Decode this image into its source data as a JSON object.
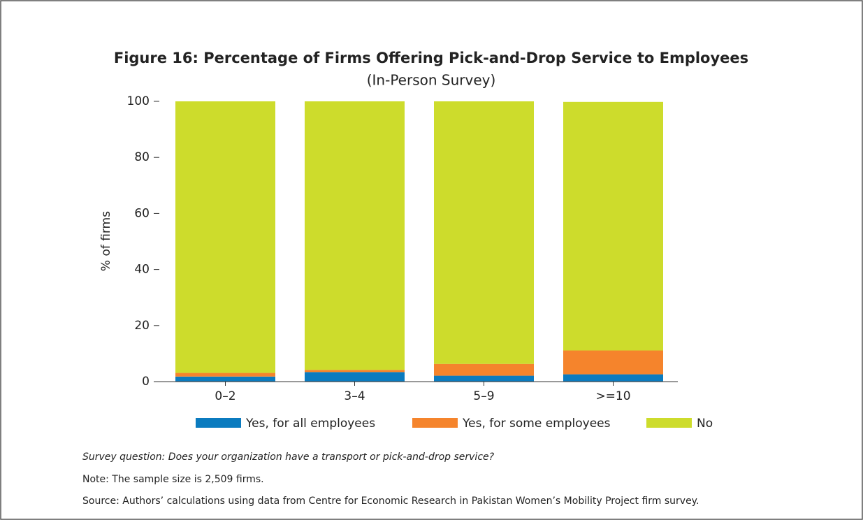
{
  "chart_data": {
    "type": "stacked_bar",
    "title": "Figure 16: Percentage of Firms Offering Pick-and-Drop Service to Employees",
    "subtitle": "(In-Person Survey)",
    "y_label": "% of firms",
    "categories": [
      "0–2",
      "3–4",
      "5–9",
      ">=10"
    ],
    "series": [
      {
        "name": "Yes, for all employees",
        "color": "#0b7bbf",
        "values": [
          1.8,
          3.4,
          2.1,
          2.6
        ]
      },
      {
        "name": "Yes, for some employees",
        "color": "#f5842c",
        "values": [
          1.3,
          0.8,
          4.2,
          8.5
        ]
      },
      {
        "name": "No",
        "color": "#cddc2c",
        "values": [
          96.9,
          95.8,
          93.7,
          88.7
        ]
      }
    ],
    "ylim": [
      0,
      100
    ],
    "yticks": [
      0,
      20,
      40,
      60,
      80,
      100
    ],
    "legend": "bottom"
  },
  "notes": {
    "survey_question": "Survey question: Does your organization have a transport or pick-and-drop service?",
    "note": "Note: The sample size is 2,509 firms.",
    "source": "Source: Authors’ calculations using data from Centre for Economic Research in Pakistan Women’s Mobility Project firm survey."
  }
}
